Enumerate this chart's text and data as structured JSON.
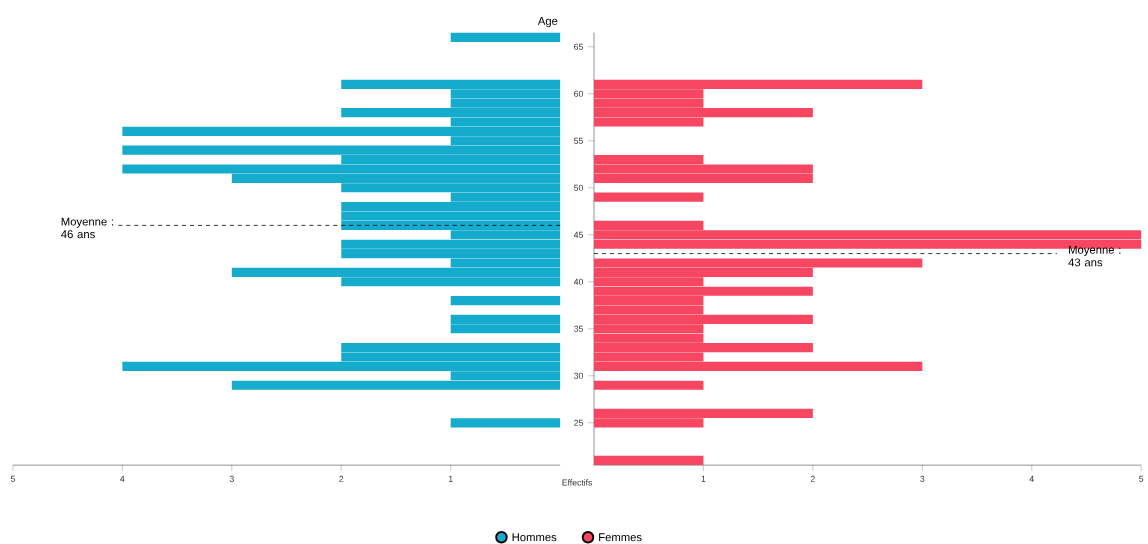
{
  "chart_data": [
    {
      "type": "bar",
      "orientation": "horizontal",
      "x": [
        66,
        65,
        64,
        63,
        62,
        61,
        60,
        59,
        58,
        57,
        56,
        55,
        54,
        53,
        52,
        51,
        50,
        49,
        48,
        47,
        46,
        45,
        44,
        43,
        42,
        41,
        40,
        39,
        38,
        37,
        36,
        35,
        34,
        33,
        32,
        31,
        30,
        29,
        28,
        27,
        26,
        25
      ],
      "series": [
        {
          "name": "Hommes",
          "color": "#15abcc",
          "values": [
            1,
            null,
            null,
            null,
            null,
            2,
            1,
            1,
            2,
            1,
            4,
            1,
            4,
            2,
            4,
            3,
            2,
            1,
            2,
            2,
            2,
            1,
            2,
            2,
            1,
            3,
            2,
            null,
            1,
            null,
            1,
            1,
            null,
            2,
            2,
            4,
            1,
            3,
            null,
            null,
            null,
            1
          ]
        }
      ],
      "xlim": [
        5,
        0
      ],
      "xticks": [
        5,
        4,
        3,
        2,
        1
      ],
      "ylim": [
        20.5,
        66.5
      ],
      "tick_labels": "x",
      "ref_lines": [
        {
          "axis": "y",
          "value": 46,
          "label": "Moyenne : 46 ans",
          "line_style": "dashed"
        }
      ],
      "legend": "bottom"
    },
    {
      "type": "bar",
      "orientation": "horizontal",
      "xlabel": "Effectifs",
      "ylabel": "Age",
      "x": [
        61,
        60,
        59,
        58,
        57,
        56,
        55,
        54,
        53,
        52,
        51,
        50,
        49,
        48,
        47,
        46,
        45,
        44,
        43,
        42,
        41,
        40,
        39,
        38,
        37,
        36,
        35,
        34,
        33,
        32,
        31,
        30,
        29,
        28,
        27,
        26,
        25,
        24,
        23,
        22,
        21
      ],
      "series": [
        {
          "name": "Femmes",
          "color": "#f64661",
          "values": [
            3,
            1,
            1,
            2,
            1,
            null,
            null,
            null,
            1,
            2,
            2,
            null,
            1,
            null,
            null,
            1,
            5,
            5,
            null,
            3,
            2,
            1,
            2,
            1,
            1,
            2,
            1,
            1,
            2,
            1,
            3,
            null,
            1,
            null,
            null,
            2,
            1,
            null,
            null,
            null,
            1
          ]
        }
      ],
      "xlim": [
        0,
        5
      ],
      "xticks": [
        1,
        2,
        3,
        4,
        5
      ],
      "ylim": [
        20.5,
        66.5
      ],
      "yticks": [
        25,
        30,
        35,
        40,
        45,
        50,
        55,
        60,
        65
      ],
      "ref_lines": [
        {
          "axis": "y",
          "value": 43,
          "label": "Moyenne : 43 ans",
          "line_style": "dashed"
        }
      ],
      "legend": "bottom"
    }
  ]
}
